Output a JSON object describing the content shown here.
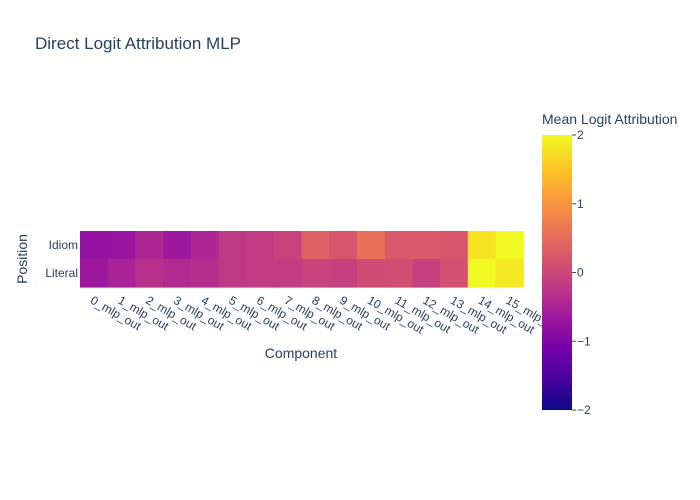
{
  "chart_data": {
    "type": "heatmap",
    "title": "Direct Logit Attribution MLP",
    "xlabel": "Component",
    "ylabel": "Position",
    "x": [
      "0_mlp_out",
      "1_mlp_out",
      "2_mlp_out",
      "3_mlp_out",
      "4_mlp_out",
      "5_mlp_out",
      "6_mlp_out",
      "7_mlp_out",
      "8_mlp_out",
      "9_mlp_out",
      "10_mlp_out",
      "11_mlp_out",
      "12_mlp_out",
      "13_mlp_out",
      "14_mlp_out",
      "15_mlp_out"
    ],
    "y": [
      "Idiom",
      "Literal"
    ],
    "z": [
      [
        -0.75,
        -0.7,
        -0.45,
        -0.65,
        -0.45,
        -0.2,
        -0.15,
        -0.05,
        0.35,
        0.2,
        0.55,
        0.25,
        0.25,
        0.2,
        1.8,
        2.0
      ],
      [
        -0.65,
        -0.5,
        -0.3,
        -0.4,
        -0.35,
        -0.2,
        -0.15,
        -0.15,
        -0.05,
        -0.1,
        0.05,
        0.1,
        -0.1,
        0.15,
        2.05,
        1.85
      ]
    ],
    "colorbar": {
      "title": "Mean Logit Attribution",
      "range": [
        -2,
        2
      ],
      "ticks": [
        2,
        1,
        0,
        -1,
        -2
      ],
      "tick_labels": [
        "2",
        "1",
        "0",
        "−1",
        "−2"
      ],
      "colorscale": [
        "#0d0887",
        "#46039f",
        "#7201a8",
        "#9c179e",
        "#bd3786",
        "#d8576b",
        "#ed7953",
        "#fb9f3a",
        "#fdca26",
        "#f0f921"
      ]
    }
  }
}
